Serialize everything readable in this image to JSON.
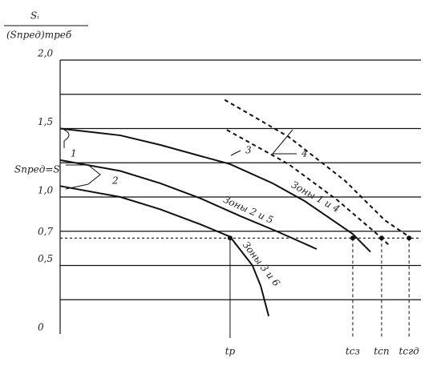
{
  "chart_data": {
    "type": "line",
    "y_title_numerator": "Sᵢ",
    "y_title_denominator": "(Sпред)треб",
    "y_left_label": "Sпред=S",
    "xlim": [
      0,
      100
    ],
    "ylim": [
      0,
      2
    ],
    "yticks": [
      0,
      {
        "value": 0.5,
        "label": "0,5"
      },
      {
        "value": 0.7,
        "label": "0,7"
      },
      {
        "value": 1.0,
        "label": "1,0"
      },
      {
        "value": 1.5,
        "label": "1,5"
      },
      {
        "value": 2.0,
        "label": "2,0"
      }
    ],
    "grid_y": [
      0.25,
      0.5,
      0.75,
      1.0,
      1.25,
      1.5,
      1.75,
      2.0
    ],
    "xticks": [
      {
        "value": 47.1,
        "label": "tр"
      },
      {
        "value": 81.1,
        "label": "tсз"
      },
      {
        "value": 89.1,
        "label": "tсп"
      },
      {
        "value": 96.7,
        "label": "tсгд"
      }
    ],
    "reference_y": 0.7,
    "series": [
      {
        "name": "Зоны 1 и 4",
        "color": "#111",
        "dashed": false,
        "x": [
          0,
          16.7,
          27.8,
          47.1,
          58.9,
          67.8,
          81.1,
          86
        ],
        "values": [
          1.5,
          1.45,
          1.38,
          1.24,
          1.1,
          0.97,
          0.73,
          0.6
        ]
      },
      {
        "name": "Зоны 2 и 5",
        "color": "#111",
        "dashed": false,
        "x": [
          0,
          16.7,
          27.8,
          38.9,
          50,
          60,
          71.1
        ],
        "values": [
          1.27,
          1.19,
          1.1,
          0.99,
          0.86,
          0.75,
          0.62
        ]
      },
      {
        "name": "Зоны 3 и 6",
        "color": "#111",
        "dashed": false,
        "x": [
          0,
          16.7,
          27.8,
          38.9,
          47.1,
          53.3,
          55.6,
          57.8
        ],
        "values": [
          1.08,
          1.0,
          0.91,
          0.8,
          0.71,
          0.5,
          0.35,
          0.13
        ]
      },
      {
        "color": "#111",
        "dashed": true,
        "x": [
          46.2,
          63.3,
          76.7,
          87.8,
          91.1
        ],
        "values": [
          1.49,
          1.24,
          0.98,
          0.73,
          0.65
        ]
      },
      {
        "color": "#111",
        "dashed": true,
        "x": [
          45.6,
          63.3,
          78.9,
          90,
          96.7
        ],
        "values": [
          1.71,
          1.44,
          1.12,
          0.83,
          0.71
        ]
      }
    ],
    "points": {
      "x": [
        47.1,
        81.1,
        89.1,
        96.7
      ],
      "values": [
        0.7,
        0.7,
        0.7,
        0.7
      ]
    },
    "annotations": [
      "1",
      "2",
      "3",
      "4"
    ]
  }
}
